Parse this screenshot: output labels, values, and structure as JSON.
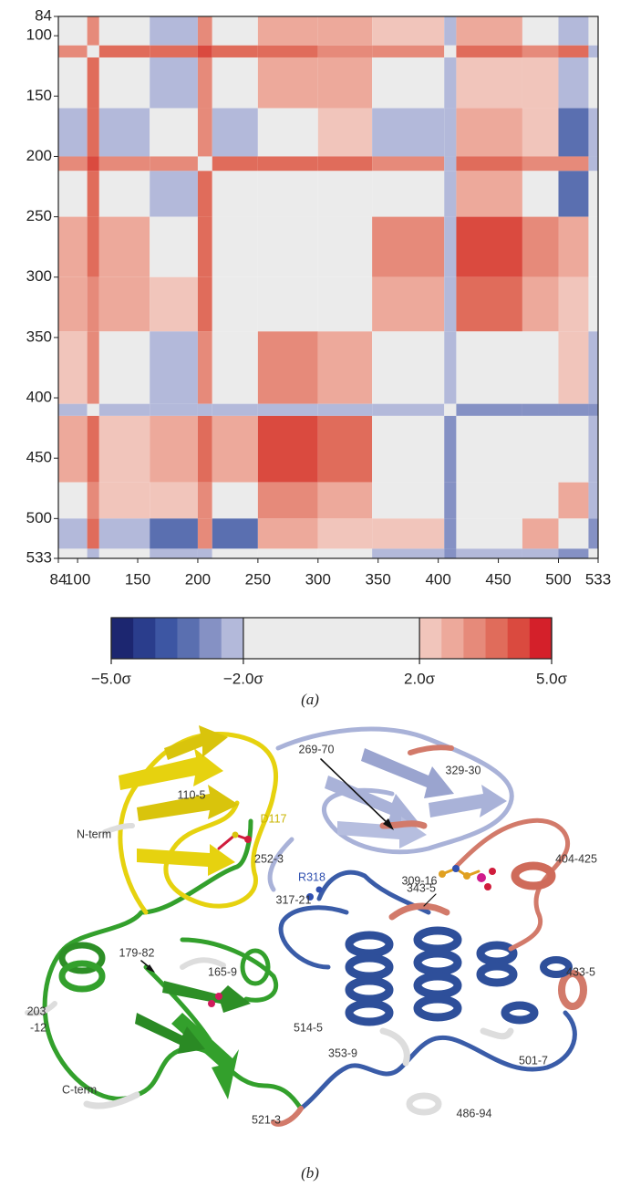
{
  "chart_data": {
    "type": "heatmap",
    "edges": [
      84,
      108,
      118,
      160,
      200,
      212,
      250,
      300,
      345,
      405,
      415,
      470,
      500,
      525,
      533
    ],
    "values": [
      [
        1.5,
        3.0,
        0.5,
        -2.5,
        3.0,
        0.5,
        2.5,
        2.5,
        2.0,
        -2.5,
        2.5,
        1.5,
        -2.5,
        0.5
      ],
      [
        3.0,
        0.5,
        3.5,
        3.5,
        4.0,
        3.5,
        3.5,
        3.0,
        3.0,
        -1.5,
        3.5,
        3.0,
        3.5,
        -2.5
      ],
      [
        0.5,
        3.5,
        1.0,
        -2.5,
        3.0,
        0.5,
        2.5,
        2.5,
        1.5,
        -2.5,
        2.0,
        2.0,
        -2.5,
        0.5
      ],
      [
        -2.5,
        3.5,
        -2.5,
        1.5,
        3.0,
        -2.0,
        1.5,
        2.0,
        -2.5,
        -2.5,
        2.5,
        2.0,
        -3.5,
        -2.0
      ],
      [
        3.0,
        4.0,
        3.0,
        3.0,
        1.0,
        3.5,
        3.5,
        3.5,
        3.0,
        -2.5,
        3.5,
        3.0,
        3.0,
        -2.0
      ],
      [
        0.5,
        3.5,
        0.5,
        -2.0,
        3.5,
        1.0,
        1.0,
        1.0,
        1.5,
        -2.0,
        2.5,
        1.5,
        -3.5,
        0.5
      ],
      [
        2.5,
        3.5,
        2.5,
        1.5,
        3.5,
        1.0,
        1.0,
        1.0,
        3.0,
        -2.5,
        4.0,
        3.0,
        2.5,
        0.5
      ],
      [
        2.5,
        3.0,
        2.5,
        2.0,
        3.5,
        1.0,
        1.0,
        1.0,
        2.5,
        -2.5,
        3.5,
        2.5,
        2.0,
        0.5
      ],
      [
        2.0,
        3.0,
        1.5,
        -2.5,
        3.0,
        1.5,
        3.0,
        2.5,
        1.0,
        -2.5,
        1.0,
        1.5,
        2.0,
        -2.0
      ],
      [
        -2.5,
        -1.5,
        -2.5,
        -2.5,
        -2.5,
        -2.0,
        -2.5,
        -2.5,
        -2.5,
        1.0,
        -3.0,
        -3.0,
        -3.0,
        -3.0
      ],
      [
        2.5,
        3.5,
        2.0,
        2.5,
        3.5,
        2.5,
        4.0,
        3.5,
        1.0,
        -3.0,
        1.0,
        1.0,
        1.5,
        -2.5
      ],
      [
        1.5,
        3.0,
        2.0,
        2.0,
        3.0,
        1.5,
        3.0,
        2.5,
        1.5,
        -3.0,
        1.0,
        1.0,
        2.5,
        -2.5
      ],
      [
        -2.5,
        3.5,
        -2.5,
        -3.5,
        3.0,
        -3.5,
        2.5,
        2.0,
        2.0,
        -3.0,
        1.5,
        2.5,
        1.0,
        -3.0
      ],
      [
        0.5,
        -2.5,
        0.5,
        -2.0,
        -2.0,
        0.5,
        0.5,
        0.5,
        -2.0,
        -3.0,
        -2.5,
        -2.5,
        -3.0,
        1.0
      ]
    ],
    "xlim": [
      84,
      533
    ],
    "ylim": [
      84,
      533
    ],
    "y_inverted": true,
    "xticks": [
      84,
      100,
      150,
      200,
      250,
      300,
      350,
      400,
      450,
      500,
      533
    ],
    "yticks": [
      84,
      100,
      150,
      200,
      250,
      300,
      350,
      400,
      450,
      500,
      533
    ],
    "colorbar": {
      "lim": [
        -5,
        5
      ],
      "ticks": [
        {
          "value": -5,
          "label": "−5.0σ"
        },
        {
          "value": -2,
          "label": "−2.0σ"
        },
        {
          "value": 2,
          "label": "2.0σ"
        },
        {
          "value": 5,
          "label": "5.0σ"
        }
      ],
      "negative_colors": [
        "#1c2670",
        "#2a3d8c",
        "#3d56a3",
        "#5a6fb0",
        "#8591c4",
        "#b3b9da"
      ],
      "neutral_color": "#ebebeb",
      "positive_colors": [
        "#f1c5bb",
        "#eda99b",
        "#e68a7a",
        "#e06c5b",
        "#da4a3f",
        "#d4202a"
      ]
    }
  },
  "panel_a_label": "(a)",
  "panel_b_label": "(b)",
  "structure_labels": [
    "269-70",
    "329-30",
    "110-5",
    "D117",
    "N-term",
    "252-3",
    "R318",
    "309-16",
    "404-425",
    "317-21",
    "343-5",
    "179-82",
    "165-9",
    "433-5",
    "203",
    "-12",
    "514-5",
    "353-9",
    "501-7",
    "C-term",
    "521-3",
    "486-94"
  ]
}
